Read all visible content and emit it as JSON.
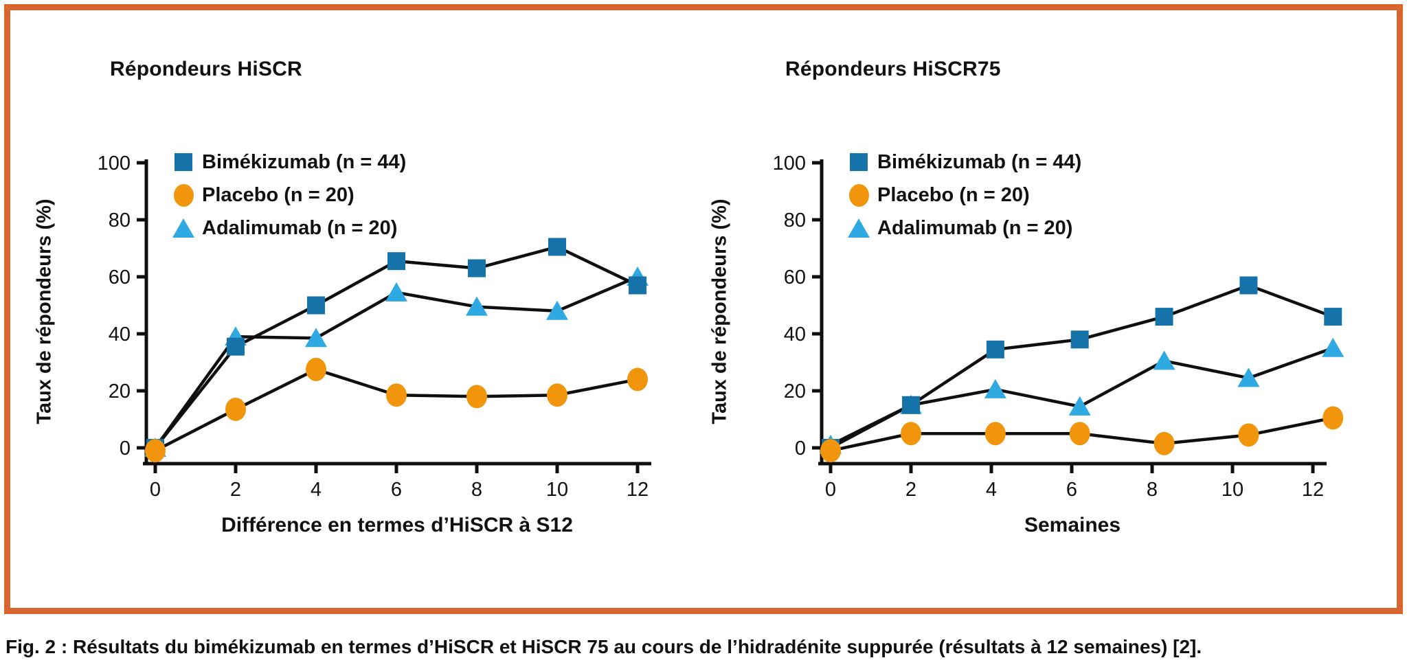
{
  "figure": {
    "border_color": "#D9662E",
    "line_color": "#0f0f0f"
  },
  "caption": {
    "prefix": "Fig. 2 :",
    "text": " Résultats du bimékizumab en termes d’HiSCR et HiSCR 75 au cours de l’hidradénite suppurée (résultats à 12 semaines) [2]."
  },
  "chart_data": [
    {
      "type": "line",
      "title": "Répondeurs HiSCR",
      "xlabel": "Différence en termes d’HiSCR à S12",
      "ylabel": "Taux de répondeurs (%)",
      "x_ticks": [
        0,
        2,
        4,
        6,
        8,
        10,
        12
      ],
      "y_ticks": [
        0,
        20,
        40,
        60,
        80,
        100
      ],
      "ylim": [
        0,
        100
      ],
      "grid": false,
      "legend_position": "upper-left-inside",
      "series": [
        {
          "label": "Bimékizumab (n = 44)",
          "marker": "square",
          "color": "#1673A9",
          "x": [
            0,
            2,
            4,
            6,
            8,
            10,
            12
          ],
          "values": [
            0,
            35.5,
            50,
            65.5,
            63,
            70.5,
            57
          ]
        },
        {
          "label": "Placebo (n = 20)",
          "marker": "circle",
          "color": "#F0950C",
          "x": [
            0,
            2,
            4,
            6,
            8,
            10,
            12
          ],
          "values": [
            -1,
            13.5,
            27.5,
            18.5,
            18,
            18.5,
            24
          ]
        },
        {
          "label": "Adalimumab (n = 20)",
          "marker": "triangle",
          "color": "#2FA9E1",
          "x": [
            0,
            2,
            4,
            6,
            8,
            10,
            12
          ],
          "values": [
            0,
            39,
            38.5,
            54.5,
            49.5,
            48,
            60
          ]
        }
      ]
    },
    {
      "type": "line",
      "title": "Répondeurs HiSCR75",
      "xlabel": "Semaines",
      "ylabel": "Taux de répondeurs (%)",
      "x_ticks": [
        0,
        2,
        4,
        6,
        8,
        10,
        12
      ],
      "y_ticks": [
        0,
        20,
        40,
        60,
        80,
        100
      ],
      "ylim": [
        0,
        100
      ],
      "grid": false,
      "legend_position": "upper-left-inside",
      "series": [
        {
          "label": "Bimékizumab (n = 44)",
          "marker": "square",
          "color": "#1673A9",
          "x": [
            0,
            2,
            4.1,
            6.2,
            8.3,
            10.4,
            12.5
          ],
          "values": [
            0,
            15,
            34.5,
            38,
            46,
            57,
            46
          ]
        },
        {
          "label": "Placebo (n = 20)",
          "marker": "circle",
          "color": "#F0950C",
          "x": [
            0,
            2,
            4.1,
            6.2,
            8.3,
            10.4,
            12.5
          ],
          "values": [
            -1,
            5,
            5,
            5,
            1.5,
            4.5,
            10.5
          ]
        },
        {
          "label": "Adalimumab (n = 20)",
          "marker": "triangle",
          "color": "#2FA9E1",
          "x": [
            0,
            2,
            4.1,
            6.2,
            8.3,
            10.4,
            12.5
          ],
          "values": [
            1,
            15,
            20.5,
            14.5,
            30.5,
            24.5,
            35
          ]
        }
      ]
    }
  ]
}
